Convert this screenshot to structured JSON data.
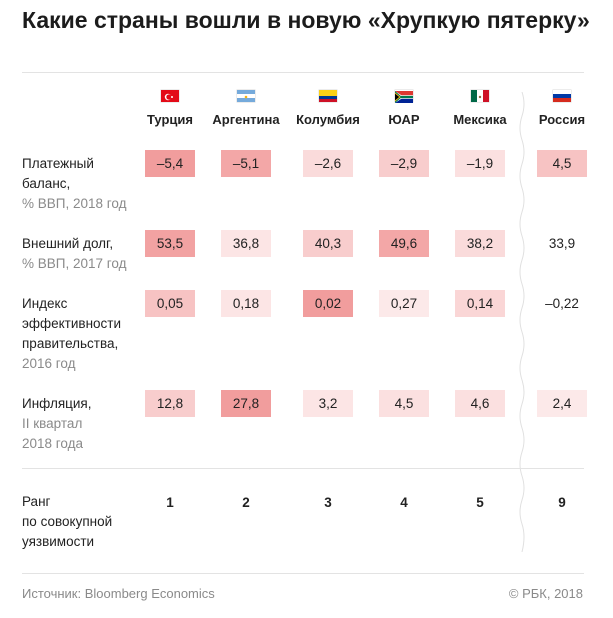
{
  "title": "Какие страны вошли в новую «Хрупкую пятерку»",
  "countries": [
    {
      "name": "Турция",
      "flag": "flag-turkey-icon"
    },
    {
      "name": "Аргентина",
      "flag": "flag-argentina-icon"
    },
    {
      "name": "Колумбия",
      "flag": "flag-colombia-icon"
    },
    {
      "name": "ЮАР",
      "flag": "flag-south-africa-icon"
    },
    {
      "name": "Мексика",
      "flag": "flag-mexico-icon"
    },
    {
      "name": "Россия",
      "flag": "flag-russia-icon"
    }
  ],
  "rows": [
    {
      "label": [
        "Платежный",
        "баланс,"
      ],
      "sub": [
        "% ВВП, 2018 год"
      ],
      "values": [
        "–5,4",
        "–5,1",
        "–2,6",
        "–2,9",
        "–1,9",
        "4,5"
      ],
      "shade": [
        0.85,
        0.75,
        0.2,
        0.35,
        0.15,
        0.45
      ]
    },
    {
      "label": [
        "Внешний долг,"
      ],
      "sub": [
        "% ВВП, 2017 год"
      ],
      "values": [
        "53,5",
        "36,8",
        "40,3",
        "49,6",
        "38,2",
        "33,9"
      ],
      "shade": [
        0.8,
        0.1,
        0.35,
        0.75,
        0.2,
        0.0
      ]
    },
    {
      "label": [
        "Индекс",
        "эффективности",
        "правительства,"
      ],
      "sub": [
        "2016 год"
      ],
      "values": [
        "0,05",
        "0,18",
        "0,02",
        "0,27",
        "0,14",
        "–0,22"
      ],
      "shade": [
        0.45,
        0.1,
        0.85,
        0.05,
        0.25,
        0.0
      ]
    },
    {
      "label": [
        "Инфляция,"
      ],
      "sub": [
        "II квартал",
        "2018 года"
      ],
      "values": [
        "12,8",
        "27,8",
        "3,2",
        "4,5",
        "4,6",
        "2,4"
      ],
      "shade": [
        0.35,
        0.85,
        0.1,
        0.15,
        0.15,
        0.05
      ]
    }
  ],
  "rank": {
    "label": [
      "Ранг",
      "по совокупной",
      "уязвимости"
    ],
    "values": [
      "1",
      "2",
      "3",
      "4",
      "5",
      "9"
    ]
  },
  "source": "Источник: Bloomberg Economics",
  "copyright": "© РБК, 2018",
  "colors": {
    "heat_min": "#fdeeee",
    "heat_max": "#ef8f8f"
  }
}
